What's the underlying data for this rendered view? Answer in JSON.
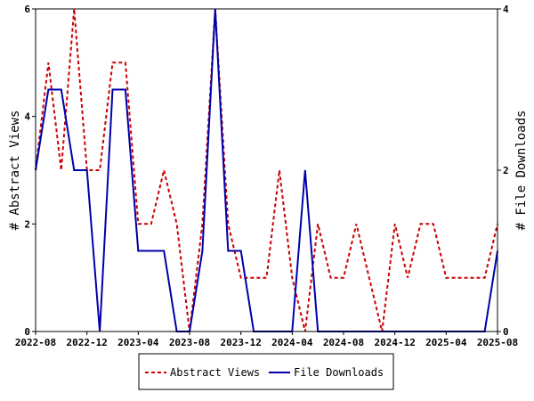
{
  "chart_data": {
    "type": "line",
    "x": [
      "2022-08",
      "2022-09",
      "2022-10",
      "2022-11",
      "2022-12",
      "2023-01",
      "2023-02",
      "2023-03",
      "2023-04",
      "2023-05",
      "2023-06",
      "2023-07",
      "2023-08",
      "2023-09",
      "2023-10",
      "2023-11",
      "2023-12",
      "2024-01",
      "2024-02",
      "2024-03",
      "2024-04",
      "2024-05",
      "2024-06",
      "2024-07",
      "2024-08",
      "2024-09",
      "2024-10",
      "2024-11",
      "2024-12",
      "2025-01",
      "2025-02",
      "2025-03",
      "2025-04",
      "2025-05",
      "2025-06",
      "2025-07",
      "2025-08"
    ],
    "x_ticks": [
      "2022-08",
      "2022-12",
      "2023-04",
      "2023-08",
      "2023-12",
      "2024-04",
      "2024-08",
      "2024-12",
      "2025-04",
      "2025-08"
    ],
    "series": [
      {
        "name": "Abstract Views",
        "axis": "left",
        "color": "#cc0000",
        "dash": true,
        "values": [
          3,
          5,
          3,
          6,
          3,
          3,
          5,
          5,
          2,
          2,
          3,
          2,
          0,
          2,
          6,
          2,
          1,
          1,
          1,
          3,
          1,
          0,
          2,
          1,
          1,
          2,
          1,
          0,
          2,
          1,
          2,
          2,
          1,
          1,
          1,
          1,
          2
        ]
      },
      {
        "name": "File Downloads",
        "axis": "right",
        "color": "#0000aa",
        "dash": false,
        "values": [
          2,
          3,
          3,
          2,
          2,
          0,
          3,
          3,
          1,
          1,
          1,
          0,
          0,
          1,
          4,
          1,
          1,
          0,
          0,
          0,
          0,
          2,
          0,
          0,
          0,
          0,
          0,
          0,
          0,
          0,
          0,
          0,
          0,
          0,
          0,
          0,
          1
        ]
      }
    ],
    "y_left": {
      "label": "# Abstract Views",
      "ylim": [
        0,
        6
      ],
      "ticks": [
        "0",
        "2",
        "4",
        "6"
      ]
    },
    "y_right": {
      "label": "# File Downloads",
      "ylim": [
        0,
        4
      ],
      "ticks": [
        "0",
        "2",
        "4"
      ]
    },
    "legend": {
      "placement": "bottom-center"
    },
    "grid": false
  }
}
